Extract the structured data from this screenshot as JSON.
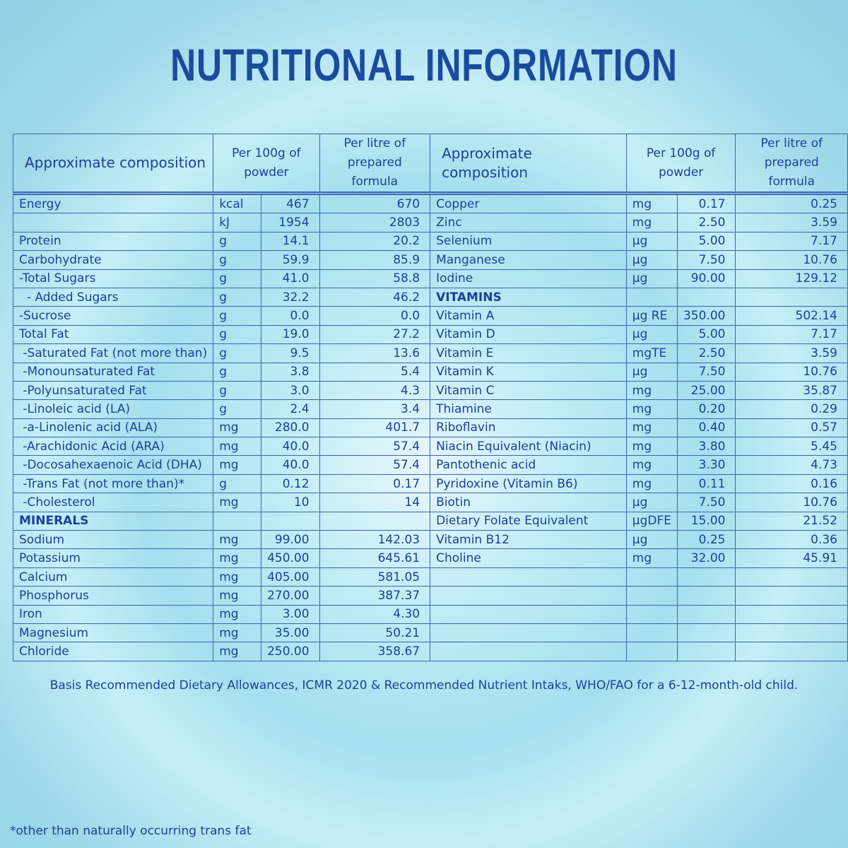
{
  "title": "NUTRITIONAL INFORMATION",
  "header": {
    "composition": "Approximate composition",
    "per_100g": "Per 100g of powder",
    "per_litre": "Per litre of prepared formula"
  },
  "left_table": {
    "rows": [
      {
        "name": "Energy",
        "unit": "kcal",
        "per_100g": "467",
        "per_litre": "670"
      },
      {
        "unit": "kJ",
        "per_100g": "1954",
        "per_litre": "2803"
      },
      {
        "name": "Protein",
        "unit": "g",
        "per_100g": "14.1",
        "per_litre": "20.2"
      },
      {
        "name": "Carbohydrate",
        "unit": "g",
        "per_100g": "59.9",
        "per_litre": "85.9"
      },
      {
        "name": "-Total Sugars",
        "unit": "g",
        "per_100g": "41.0",
        "per_litre": "58.8"
      },
      {
        "name": "  - Added Sugars",
        "unit": "g",
        "per_100g": "32.2",
        "per_litre": "46.2"
      },
      {
        "name": "-Sucrose",
        "unit": "g",
        "per_100g": "0.0",
        "per_litre": "0.0"
      },
      {
        "name": "Total Fat",
        "unit": "g",
        "per_100g": "19.0",
        "per_litre": "27.2"
      },
      {
        "name": " -Saturated Fat (not more than)",
        "unit": "g",
        "per_100g": "9.5",
        "per_litre": "13.6"
      },
      {
        "name": " -Monounsaturated Fat",
        "unit": "g",
        "per_100g": "3.8",
        "per_litre": "5.4"
      },
      {
        "name": " -Polyunsaturated Fat",
        "unit": "g",
        "per_100g": "3.0",
        "per_litre": "4.3"
      },
      {
        "name": " -Linoleic acid (LA)",
        "unit": "g",
        "per_100g": "2.4",
        "per_litre": "3.4"
      },
      {
        "name": " -a-Linolenic acid (ALA)",
        "unit": "mg",
        "per_100g": "280.0",
        "per_litre": "401.7"
      },
      {
        "name": " -Arachidonic Acid (ARA)",
        "unit": "mg",
        "per_100g": "40.0",
        "per_litre": "57.4"
      },
      {
        "name": " -Docosahexaenoic Acid (DHA)",
        "unit": "mg",
        "per_100g": "40.0",
        "per_litre": "57.4"
      },
      {
        "name": " -Trans Fat (not more than)*",
        "unit": "g",
        "per_100g": "0.12",
        "per_litre": "0.17"
      },
      {
        "name": " -Cholesterol",
        "unit": "mg",
        "per_100g": "10",
        "per_litre": "14"
      },
      {
        "section": "MINERALS"
      },
      {
        "name": "Sodium",
        "unit": "mg",
        "per_100g": "99.00",
        "per_litre": "142.03"
      },
      {
        "name": "Potassium",
        "unit": "mg",
        "per_100g": "450.00",
        "per_litre": "645.61"
      },
      {
        "name": "Calcium",
        "unit": "mg",
        "per_100g": "405.00",
        "per_litre": "581.05"
      },
      {
        "name": "Phosphorus",
        "unit": "mg",
        "per_100g": "270.00",
        "per_litre": "387.37"
      },
      {
        "name": "Iron",
        "unit": "mg",
        "per_100g": "3.00",
        "per_litre": "4.30"
      },
      {
        "name": "Magnesium",
        "unit": "mg",
        "per_100g": "35.00",
        "per_litre": "50.21"
      },
      {
        "name": "Chloride",
        "unit": "mg",
        "per_100g": "250.00",
        "per_litre": "358.67"
      }
    ]
  },
  "right_table": {
    "rows": [
      {
        "name": "Copper",
        "unit": "mg",
        "per_100g": "0.17",
        "per_litre": "0.25"
      },
      {
        "name": "Zinc",
        "unit": "mg",
        "per_100g": "2.50",
        "per_litre": "3.59"
      },
      {
        "name": "Selenium",
        "unit": "µg",
        "per_100g": "5.00",
        "per_litre": "7.17"
      },
      {
        "name": "Manganese",
        "unit": "µg",
        "per_100g": "7.50",
        "per_litre": "10.76"
      },
      {
        "name": "Iodine",
        "unit": "µg",
        "per_100g": "90.00",
        "per_litre": "129.12"
      },
      {
        "section": "VITAMINS"
      },
      {
        "name": "Vitamin A",
        "unit": "µg RE",
        "per_100g": "350.00",
        "per_litre": "502.14"
      },
      {
        "name": "Vitamin D",
        "unit": "µg",
        "per_100g": "5.00",
        "per_litre": "7.17"
      },
      {
        "name": "Vitamin E",
        "unit": "mgTE",
        "per_100g": "2.50",
        "per_litre": "3.59"
      },
      {
        "name": "Vitamin K",
        "unit": "µg",
        "per_100g": "7.50",
        "per_litre": "10.76"
      },
      {
        "name": "Vitamin C",
        "unit": "mg",
        "per_100g": "25.00",
        "per_litre": "35.87"
      },
      {
        "name": "Thiamine",
        "unit": "mg",
        "per_100g": "0.20",
        "per_litre": "0.29"
      },
      {
        "name": "Riboflavin",
        "unit": "mg",
        "per_100g": "0.40",
        "per_litre": "0.57"
      },
      {
        "name": "Niacin Equivalent (Niacin)",
        "unit": "mg",
        "per_100g": "3.80",
        "per_litre": "5.45"
      },
      {
        "name": "Pantothenic acid",
        "unit": "mg",
        "per_100g": "3.30",
        "per_litre": "4.73"
      },
      {
        "name": "Pyridoxine (Vitamin B6)",
        "unit": "mg",
        "per_100g": "0.11",
        "per_litre": "0.16"
      },
      {
        "name": "Biotin",
        "unit": "µg",
        "per_100g": "7.50",
        "per_litre": "10.76"
      },
      {
        "name": "Dietary Folate Equivalent",
        "unit": "µgDFE",
        "per_100g": "15.00",
        "per_litre": "21.52"
      },
      {
        "name": "Vitamin B12",
        "unit": "µg",
        "per_100g": "0.25",
        "per_litre": "0.36"
      },
      {
        "name": "Choline",
        "unit": "mg",
        "per_100g": "32.00",
        "per_litre": "45.91"
      }
    ]
  },
  "basis_note": "Basis Recommended Dietary Allowances, ICMR 2020 & Recommended Nutrient Intaks, WHO/FAO for a 6-12-month-old child.",
  "footnote": "*other than naturally occurring trans fat"
}
